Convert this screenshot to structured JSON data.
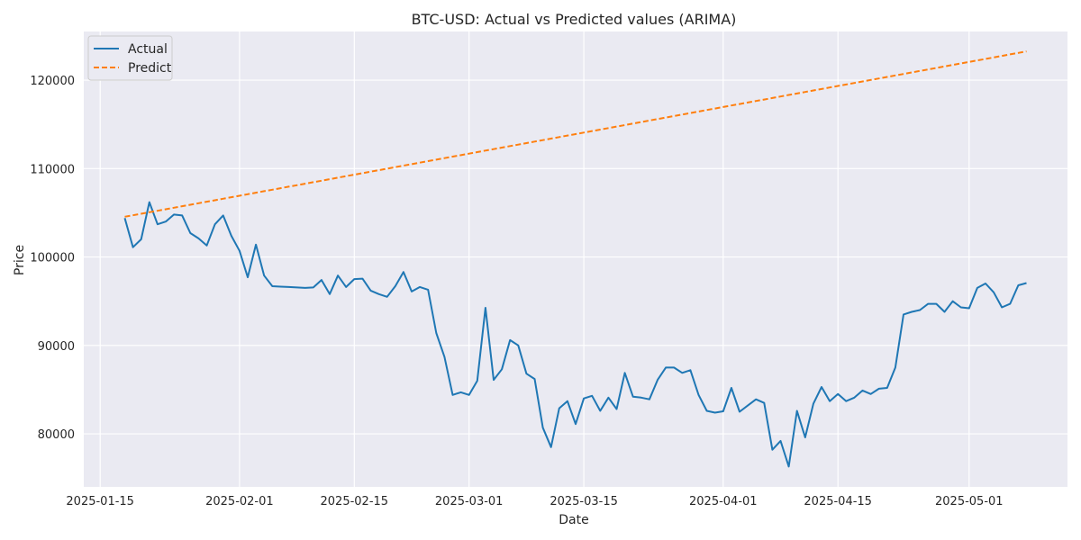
{
  "chart_data": {
    "type": "line",
    "title": "BTC-USD: Actual vs Predicted values (ARIMA)",
    "xlabel": "Date",
    "ylabel": "Price",
    "x_tick_labels": [
      "2025-01-15",
      "2025-02-01",
      "2025-02-15",
      "2025-03-01",
      "2025-03-15",
      "2025-04-01",
      "2025-04-15",
      "2025-05-01"
    ],
    "y_tick_labels": [
      "80000",
      "90000",
      "100000",
      "110000",
      "120000"
    ],
    "y_ticks": [
      80000,
      90000,
      100000,
      110000,
      120000
    ],
    "xlim": [
      "2025-01-13",
      "2025-05-13"
    ],
    "ylim": [
      74000,
      125500
    ],
    "grid": true,
    "legend_position": "top-left",
    "x_start_date": "2025-01-18",
    "series": [
      {
        "name": "Actual",
        "color": "#1f77b4",
        "style": "solid",
        "values": [
          104400,
          101100,
          102000,
          106200,
          103700,
          104000,
          104800,
          104700,
          102700,
          102100,
          101300,
          103700,
          104700,
          102400,
          100700,
          97700,
          101400,
          97900,
          96700,
          96650,
          96600,
          96550,
          96500,
          96550,
          97400,
          95800,
          97900,
          96600,
          97500,
          97550,
          96200,
          95800,
          95500,
          96700,
          98300,
          96100,
          96600,
          96300,
          91400,
          88700,
          84400,
          84700,
          84400,
          86000,
          94250,
          86100,
          87300,
          90600,
          90000,
          86800,
          86200,
          80700,
          78500,
          82900,
          83700,
          81100,
          84000,
          84300,
          82600,
          84100,
          82800,
          86900,
          84200,
          84100,
          83900,
          86100,
          87500,
          87500,
          86900,
          87200,
          84400,
          82600,
          82400,
          82550,
          85200,
          82500,
          83200,
          83900,
          83500,
          78200,
          79200,
          76300,
          82600,
          79600,
          83400,
          85300,
          83700,
          84500,
          83700,
          84100,
          84900,
          84500,
          85100,
          85200,
          87500,
          93500,
          93800,
          94000,
          94700,
          94700,
          93800,
          95000,
          94300,
          94200,
          96500,
          97000,
          96000,
          94300,
          94700,
          96800,
          97050
        ]
      },
      {
        "name": "Predict",
        "color": "#ff7f0e",
        "style": "dashed",
        "values": [
          104550,
          104720,
          104890,
          105060,
          105230,
          105400,
          105570,
          105740,
          105910,
          106080,
          106250,
          106420,
          106590,
          106760,
          106930,
          107100,
          107270,
          107440,
          107610,
          107780,
          107950,
          108120,
          108290,
          108460,
          108630,
          108800,
          108970,
          109140,
          109310,
          109480,
          109650,
          109820,
          109990,
          110160,
          110330,
          110500,
          110670,
          110840,
          111010,
          111180,
          111350,
          111520,
          111690,
          111860,
          112030,
          112200,
          112370,
          112540,
          112710,
          112880,
          113050,
          113220,
          113390,
          113560,
          113730,
          113900,
          114070,
          114240,
          114410,
          114580,
          114750,
          114920,
          115090,
          115260,
          115430,
          115600,
          115770,
          115940,
          116110,
          116280,
          116450,
          116620,
          116790,
          116960,
          117130,
          117300,
          117470,
          117640,
          117810,
          117980,
          118150,
          118320,
          118490,
          118660,
          118830,
          119000,
          119170,
          119340,
          119510,
          119680,
          119850,
          120020,
          120190,
          120360,
          120530,
          120700,
          120870,
          121040,
          121210,
          121380,
          121550,
          121720,
          121890,
          122060,
          122230,
          122400,
          122570,
          122740,
          122910,
          123080,
          123250
        ]
      }
    ]
  }
}
